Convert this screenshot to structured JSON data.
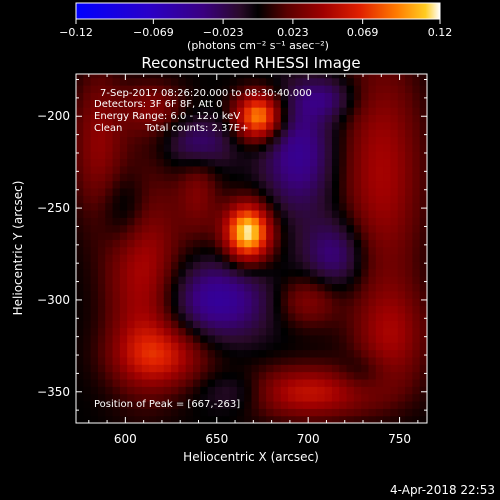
{
  "colorbar": {
    "ticks": [
      "-0.12",
      "-0.069",
      "-0.023",
      "0.023",
      "0.069",
      "0.12"
    ],
    "unit_label": "(photons cm⁻² s⁻¹ asec⁻²)",
    "colors": [
      "#0000ff",
      "#2a00c8",
      "#3a0080",
      "#2a0a2a",
      "#000000",
      "#5a0000",
      "#a00000",
      "#e02000",
      "#ff7a00",
      "#ffcc20",
      "#ffffff"
    ]
  },
  "chart_data": {
    "type": "heatmap",
    "title": "Reconstructed RHESSI Image",
    "xlabel": "Heliocentric X (arcsec)",
    "ylabel": "Heliocentric Y (arcsec)",
    "xlim": [
      573,
      765
    ],
    "ylim": [
      -367,
      -177
    ],
    "x_ticks": [
      600,
      650,
      700,
      750
    ],
    "y_ticks": [
      -200,
      -250,
      -300,
      -350
    ],
    "x_tick_labels": [
      "600",
      "650",
      "700",
      "750"
    ],
    "y_tick_labels": [
      "−200",
      "−250",
      "−300",
      "−350"
    ],
    "clim": [
      -0.12,
      0.12
    ],
    "grid": false,
    "peak": [
      667,
      -263
    ],
    "blobs": [
      {
        "x": 667,
        "y": -263,
        "value": 0.12,
        "sx": 9,
        "sy": 11
      },
      {
        "x": 673,
        "y": -200,
        "value": 0.1,
        "sx": 9,
        "sy": 9
      },
      {
        "x": 740,
        "y": -230,
        "value": 0.045,
        "sx": 16,
        "sy": 45
      },
      {
        "x": 610,
        "y": -285,
        "value": 0.05,
        "sx": 14,
        "sy": 40
      },
      {
        "x": 585,
        "y": -215,
        "value": 0.035,
        "sx": 10,
        "sy": 30
      },
      {
        "x": 620,
        "y": -330,
        "value": 0.05,
        "sx": 18,
        "sy": 12
      },
      {
        "x": 700,
        "y": -350,
        "value": 0.055,
        "sx": 26,
        "sy": 10
      },
      {
        "x": 745,
        "y": -320,
        "value": 0.04,
        "sx": 14,
        "sy": 20
      },
      {
        "x": 700,
        "y": -300,
        "value": 0.035,
        "sx": 12,
        "sy": 10
      },
      {
        "x": 615,
        "y": -195,
        "value": 0.03,
        "sx": 12,
        "sy": 10
      },
      {
        "x": 640,
        "y": -240,
        "value": 0.03,
        "sx": 8,
        "sy": 18
      },
      {
        "x": 695,
        "y": -220,
        "value": -0.045,
        "sx": 14,
        "sy": 22
      },
      {
        "x": 650,
        "y": -300,
        "value": -0.05,
        "sx": 20,
        "sy": 15
      },
      {
        "x": 640,
        "y": -215,
        "value": -0.04,
        "sx": 12,
        "sy": 10
      },
      {
        "x": 715,
        "y": -275,
        "value": -0.04,
        "sx": 12,
        "sy": 14
      },
      {
        "x": 600,
        "y": -250,
        "value": -0.03,
        "sx": 10,
        "sy": 15
      },
      {
        "x": 710,
        "y": -190,
        "value": -0.03,
        "sx": 12,
        "sy": 8
      },
      {
        "x": 660,
        "y": -350,
        "value": -0.025,
        "sx": 14,
        "sy": 8
      },
      {
        "x": 730,
        "y": -340,
        "value": -0.02,
        "sx": 10,
        "sy": 8
      }
    ]
  },
  "annotations": {
    "time_range": "7-Sep-2017 08:26:20.000 to 08:30:40.000",
    "detectors": "Detectors: 3F 6F 8F, Att 0",
    "energy_range": "Energy Range: 6.0 - 12.0 keV",
    "method": "Clean",
    "total_counts": "Total counts: 2.37E+",
    "peak_position": "Position of Peak = [667,-263]"
  },
  "timestamp": "4-Apr-2018 22:53"
}
